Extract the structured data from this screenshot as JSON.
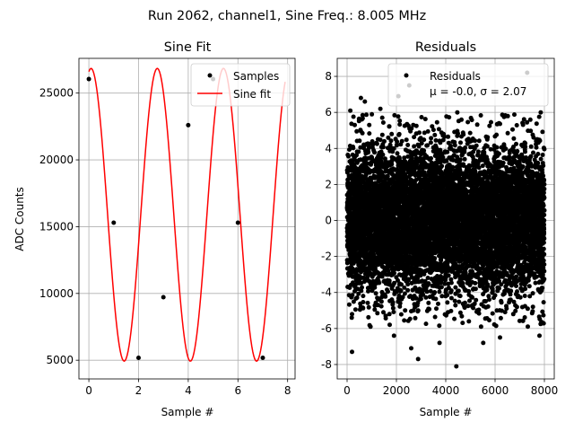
{
  "figure": {
    "suptitle": "Run 2062, channel1, Sine Freq.: 8.005 MHz"
  },
  "chart_data": [
    {
      "type": "scatter",
      "title": "Sine Fit",
      "xlabel": "Sample #",
      "ylabel": "ADC Counts",
      "xlim": [
        -0.4,
        8.3
      ],
      "ylim": [
        3600,
        27600
      ],
      "xticks": [
        0,
        2,
        4,
        6,
        8
      ],
      "yticks": [
        5000,
        10000,
        15000,
        20000,
        25000
      ],
      "grid": true,
      "legend": {
        "location": "top-right",
        "entries": [
          "Samples",
          "Sine fit"
        ]
      },
      "series": [
        {
          "name": "Samples",
          "kind": "points",
          "color": "#000000",
          "x": [
            0,
            1,
            2,
            3,
            4,
            5,
            6,
            7
          ],
          "y": [
            26050,
            15300,
            5180,
            9720,
            22600,
            26050,
            15300,
            5180
          ]
        },
        {
          "name": "Sine fit",
          "kind": "line",
          "color": "#ff0000",
          "model": {
            "offset": 15890,
            "amplitude": 10960,
            "cycles_per_sample": 0.3753,
            "phase": 1.36
          },
          "x_range": [
            0,
            7.9
          ]
        }
      ]
    },
    {
      "type": "scatter",
      "title": "Residuals",
      "xlabel": "Sample #",
      "ylabel": "",
      "xlim": [
        -400,
        8400
      ],
      "ylim": [
        -8.8,
        9.0
      ],
      "xticks": [
        0,
        2000,
        4000,
        6000,
        8000
      ],
      "yticks": [
        -8,
        -6,
        -4,
        -2,
        0,
        2,
        4,
        6,
        8
      ],
      "grid": true,
      "legend": {
        "location": "top-right",
        "entries": [
          "Residuals"
        ],
        "annotation": "μ = -0.0, σ = 2.07"
      },
      "series": [
        {
          "name": "Residuals",
          "kind": "points",
          "color": "#000000",
          "n_points": 8000,
          "mean": 0.0,
          "std": 2.07,
          "outliers": [
            [
              130,
              6.1
            ],
            [
              310,
              5.3
            ],
            [
              560,
              6.8
            ],
            [
              720,
              6.6
            ],
            [
              1350,
              6.2
            ],
            [
              2080,
              6.9
            ],
            [
              2520,
              7.5
            ],
            [
              4470,
              6.0
            ],
            [
              7300,
              8.2
            ],
            [
              7850,
              6.0
            ],
            [
              200,
              -7.3
            ],
            [
              950,
              -5.9
            ],
            [
              1900,
              -6.4
            ],
            [
              2600,
              -7.1
            ],
            [
              2880,
              -7.7
            ],
            [
              3750,
              -6.8
            ],
            [
              4430,
              -8.1
            ],
            [
              5520,
              -6.8
            ],
            [
              6200,
              -6.5
            ],
            [
              7800,
              -6.4
            ]
          ]
        }
      ]
    }
  ]
}
